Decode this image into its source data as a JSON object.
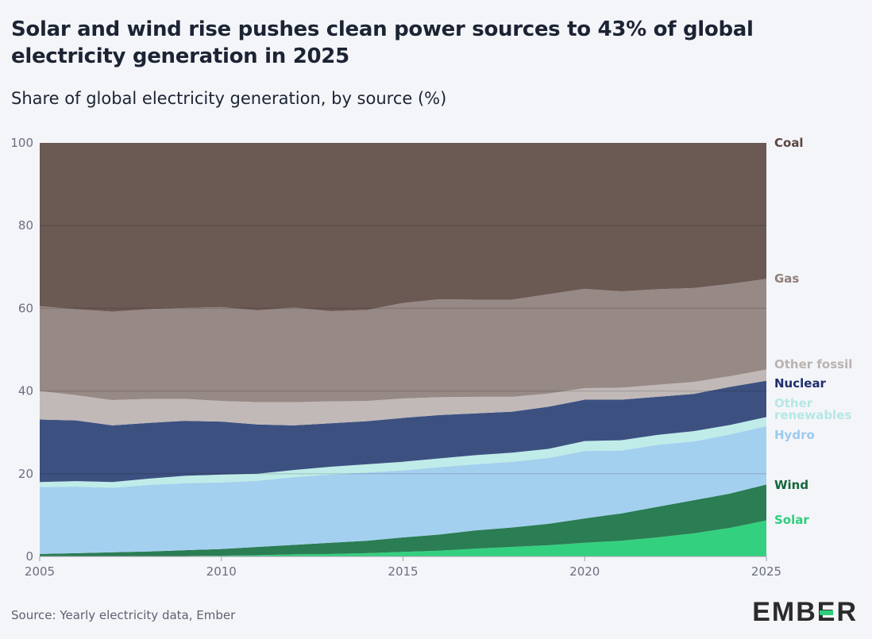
{
  "title": "Solar and wind rise pushes clean power sources to 43% of global electricity generation in 2025",
  "subtitle": "Share of global electricity generation, by source (%)",
  "source": "Source: Yearly electricity data, Ember",
  "logo": "EMBER",
  "chart_data": {
    "type": "area",
    "stacked": true,
    "title": "Solar and wind rise pushes clean power sources to 43% of global electricity generation in 2025",
    "subtitle": "Share of global electricity generation, by source (%)",
    "xlabel": "",
    "ylabel": "",
    "ylim": [
      0,
      100
    ],
    "xlim": [
      2005,
      2025
    ],
    "x_ticks": [
      "2005",
      "2010",
      "2015",
      "2020",
      "2025"
    ],
    "y_ticks": [
      "0",
      "20",
      "40",
      "60",
      "80",
      "100"
    ],
    "grid": true,
    "legend": "right (direct labels)",
    "x": [
      2005,
      2006,
      2007,
      2008,
      2009,
      2010,
      2011,
      2012,
      2013,
      2014,
      2015,
      2016,
      2017,
      2018,
      2019,
      2020,
      2021,
      2022,
      2023,
      2024,
      2025
    ],
    "series": [
      {
        "name": "Solar",
        "color": "#33d17f",
        "label_color": "#2ccf7a",
        "values": [
          0.0,
          0.0,
          0.0,
          0.0,
          0.1,
          0.2,
          0.3,
          0.5,
          0.6,
          0.8,
          1.1,
          1.4,
          1.9,
          2.3,
          2.7,
          3.3,
          3.8,
          4.6,
          5.6,
          6.9,
          8.7
        ]
      },
      {
        "name": "Wind",
        "color": "#2b7d53",
        "label_color": "#14673a",
        "values": [
          0.6,
          0.8,
          1.0,
          1.2,
          1.4,
          1.6,
          2.0,
          2.3,
          2.7,
          3.0,
          3.5,
          3.9,
          4.4,
          4.7,
          5.2,
          5.9,
          6.6,
          7.4,
          8.0,
          8.3,
          8.7
        ]
      },
      {
        "name": "Hydro",
        "color": "#a4d0ef",
        "label_color": "#9ccbef",
        "values": [
          16.2,
          16.1,
          15.6,
          16.1,
          16.2,
          16.1,
          16.0,
          16.4,
          16.5,
          16.5,
          16.2,
          16.3,
          16.0,
          15.9,
          15.9,
          16.3,
          15.2,
          15.0,
          14.2,
          14.3,
          14.1
        ]
      },
      {
        "name": "Other renewables",
        "color": "#bfece8",
        "label_color": "#b4e8e4",
        "values": [
          1.2,
          1.3,
          1.4,
          1.5,
          1.8,
          1.9,
          1.7,
          1.7,
          1.9,
          2.0,
          2.1,
          2.1,
          2.2,
          2.2,
          2.2,
          2.4,
          2.5,
          2.4,
          2.5,
          2.3,
          2.2
        ]
      },
      {
        "name": "Nuclear",
        "color": "#3d5181",
        "label_color": "#1d2f6b",
        "values": [
          15.1,
          14.7,
          13.7,
          13.5,
          13.3,
          12.8,
          11.9,
          10.8,
          10.5,
          10.4,
          10.6,
          10.5,
          10.1,
          9.9,
          10.2,
          10.0,
          9.8,
          9.2,
          9.0,
          9.2,
          8.8
        ]
      },
      {
        "name": "Other fossil",
        "color": "#c0b9b7",
        "label_color": "#b9b3b1",
        "values": [
          6.9,
          6.1,
          6.1,
          5.8,
          5.3,
          5.0,
          5.4,
          5.6,
          5.3,
          4.9,
          4.7,
          4.3,
          4.0,
          3.6,
          3.2,
          2.8,
          2.9,
          2.9,
          2.9,
          2.6,
          2.7
        ]
      },
      {
        "name": "Gas",
        "color": "#978985",
        "label_color": "#8f7f7a",
        "values": [
          20.5,
          20.8,
          21.4,
          21.7,
          22.0,
          22.7,
          22.2,
          22.9,
          21.8,
          22.0,
          23.1,
          23.7,
          23.5,
          23.5,
          24.0,
          24.0,
          23.3,
          23.1,
          22.7,
          22.3,
          21.9
        ]
      },
      {
        "name": "Coal",
        "color": "#6b5954",
        "label_color": "#5a4540",
        "values": [
          39.5,
          40.2,
          40.8,
          40.2,
          39.9,
          39.7,
          40.5,
          39.8,
          40.7,
          40.4,
          38.7,
          37.8,
          37.9,
          37.9,
          36.6,
          35.3,
          35.9,
          35.4,
          35.1,
          34.1,
          32.9
        ]
      }
    ]
  }
}
